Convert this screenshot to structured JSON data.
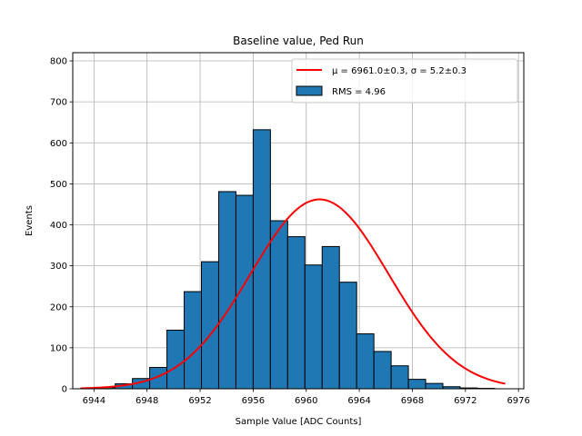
{
  "chart_data": {
    "type": "bar",
    "title": "Baseline value, Ped Run",
    "xlabel": "Sample Value [ADC Counts]",
    "ylabel": "Events",
    "xlim": [
      6942.4,
      6976.4
    ],
    "ylim": [
      0,
      820
    ],
    "xticks": [
      6944,
      6948,
      6952,
      6956,
      6960,
      6964,
      6968,
      6972,
      6976
    ],
    "yticks": [
      0,
      100,
      200,
      300,
      400,
      500,
      600,
      700,
      800
    ],
    "grid": true,
    "legend_position": "top-right",
    "histogram": {
      "name": "RMS = 4.96",
      "color": "#1f77b4",
      "edgecolor": "#000000",
      "bin_edges": [
        6943.0,
        6944.3,
        6945.6,
        6946.9,
        6948.2,
        6949.5,
        6950.8,
        6952.1,
        6953.4,
        6954.7,
        6956.0,
        6957.3,
        6958.6,
        6959.9,
        6961.2,
        6962.5,
        6963.8,
        6965.1,
        6966.4,
        6967.7,
        6969.0,
        6970.3,
        6971.6,
        6972.9,
        6974.2
      ],
      "counts": [
        1,
        3,
        12,
        25,
        52,
        143,
        237,
        310,
        481,
        472,
        632,
        410,
        371,
        302,
        347,
        260,
        134,
        91,
        56,
        23,
        13,
        5,
        2,
        1
      ]
    },
    "fit": {
      "name": "μ = 6961.0±0.3, σ = 5.2±0.3",
      "color": "#ff0000",
      "mu": 6961.0,
      "sigma": 5.2,
      "amplitude": 462,
      "x_range": [
        6943.0,
        6975.0
      ]
    }
  }
}
